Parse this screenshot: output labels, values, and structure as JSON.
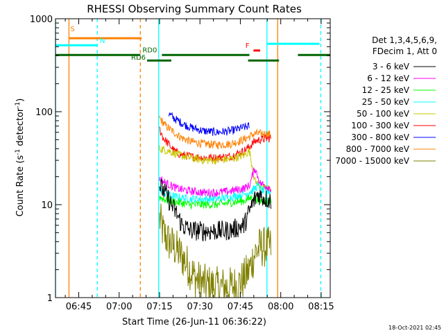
{
  "chart_data": {
    "type": "line",
    "title": "RHESSI Observing Summary Count Rates",
    "xlabel": "Start Time (26-Jun-11 06:36:22)",
    "ylabel_main": "Count Rate (s",
    "ylabel_sup": "-1",
    "ylabel_mid": " detector",
    "ylabel_close": ")",
    "footer_stamp": "18-Oct-2021 02:45",
    "x_unit": "minutes after 06:36:22",
    "xlim": [
      0,
      102
    ],
    "ylim": [
      1,
      1000
    ],
    "y_scale": "log",
    "x_ticks": [
      {
        "t": 8.63,
        "label": "06:45"
      },
      {
        "t": 23.63,
        "label": "07:00"
      },
      {
        "t": 38.63,
        "label": "07:15"
      },
      {
        "t": 53.63,
        "label": "07:30"
      },
      {
        "t": 68.63,
        "label": "07:45"
      },
      {
        "t": 83.63,
        "label": "08:00"
      },
      {
        "t": 98.63,
        "label": "08:15"
      }
    ],
    "y_ticks": [
      {
        "v": 1,
        "label": "1"
      },
      {
        "v": 10,
        "label": "10"
      },
      {
        "v": 100,
        "label": "100"
      },
      {
        "v": 1000,
        "label": "1000"
      }
    ],
    "legend_header": [
      "Det 1,3,4,5,6,9,",
      "FDecim 1, Att 0"
    ],
    "series": [
      {
        "name": "3 - 6 keV",
        "color": "#000000",
        "t": [
          38.6,
          41,
          43,
          45,
          47,
          50,
          55,
          60,
          65,
          70,
          73,
          75,
          77,
          80
        ],
        "v": [
          16,
          13,
          10,
          8,
          6,
          5.3,
          5.2,
          5.2,
          5.3,
          6,
          10,
          13,
          12,
          11
        ]
      },
      {
        "name": "6 - 12 keV",
        "color": "#ff00ff",
        "t": [
          38.6,
          41,
          43,
          45,
          47,
          50,
          55,
          60,
          65,
          70,
          72,
          74,
          76,
          78,
          80
        ],
        "v": [
          19,
          17,
          16,
          15,
          14.5,
          14,
          13.5,
          13.5,
          14,
          15,
          16,
          25,
          17,
          16,
          15
        ]
      },
      {
        "name": "12 - 25 keV",
        "color": "#00ff00",
        "t": [
          38.6,
          42,
          46,
          50,
          55,
          60,
          65,
          70,
          73,
          76,
          80
        ],
        "v": [
          12,
          11,
          10.5,
          10,
          10,
          10,
          10.5,
          11,
          12,
          11,
          11
        ]
      },
      {
        "name": "25 - 50 keV",
        "color": "#00ffff",
        "t": [
          38.6,
          41,
          45,
          50,
          55,
          60,
          65,
          70,
          73,
          75,
          77,
          80
        ],
        "v": [
          15,
          13,
          12,
          11.5,
          11.5,
          11.5,
          12,
          13,
          14,
          16,
          14,
          14
        ]
      },
      {
        "name": "50 - 100 keV",
        "color": "#c8c800",
        "t": [
          38.6,
          42,
          44,
          46,
          50,
          55,
          60,
          65,
          70,
          72,
          74,
          77,
          80
        ],
        "v": [
          40,
          38,
          36,
          34,
          32,
          30,
          30,
          31,
          34,
          38,
          18,
          15,
          15
        ]
      },
      {
        "name": "100 - 300 keV",
        "color": "#ff0000",
        "t": [
          38.6,
          40,
          42,
          44,
          46,
          50,
          55,
          60,
          65,
          70,
          72,
          74,
          76,
          80
        ],
        "v": [
          65,
          52,
          45,
          38,
          35,
          33,
          32,
          32,
          33,
          38,
          42,
          48,
          50,
          52
        ]
      },
      {
        "name": "300 - 800 keV",
        "color": "#0000ff",
        "t": [
          42,
          44,
          47,
          50,
          55,
          60,
          65,
          70,
          72
        ],
        "v": [
          95,
          85,
          75,
          68,
          62,
          60,
          62,
          68,
          70
        ]
      },
      {
        "name": "800 - 7000 keV",
        "color": "#ff8000",
        "t": [
          38.6,
          41,
          44,
          47,
          50,
          55,
          60,
          65,
          70,
          72,
          74,
          77,
          80
        ],
        "v": [
          85,
          70,
          60,
          52,
          48,
          45,
          44,
          45,
          50,
          54,
          58,
          58,
          57
        ]
      },
      {
        "name": "7000 - 15000 keV",
        "color": "#808000",
        "t": [
          38.6,
          40,
          42,
          44,
          46,
          48,
          50,
          52,
          55,
          60,
          65,
          68,
          70,
          72,
          74,
          76,
          78,
          80
        ],
        "v": [
          7,
          5,
          4,
          3.5,
          3,
          2.5,
          2,
          1.6,
          1.4,
          1.3,
          1.3,
          1.4,
          1.6,
          2,
          3,
          3.5,
          3.5,
          3.5
        ]
      }
    ],
    "flag_lines": [
      {
        "label": "S",
        "color": "#ff8000",
        "level": 0.93,
        "segments": [
          [
            5,
            32
          ]
        ],
        "label_t": 5.5,
        "label_level": 0.95,
        "label_anchor": "start"
      },
      {
        "label": "N",
        "color": "#00ffff",
        "level": 0.905,
        "segments": [
          [
            0,
            15.5
          ]
        ],
        "label_t": 16.5,
        "label_level": 0.908,
        "label_anchor": "start"
      },
      {
        "label": "RD0",
        "color": "#006400",
        "level": 0.87,
        "segments": [
          [
            0,
            31.5
          ],
          [
            39.5,
            72
          ],
          [
            90,
            102
          ]
        ],
        "label_t": 35,
        "label_level": 0.875,
        "label_anchor": "middle"
      },
      {
        "label": "RD6",
        "color": "#006400",
        "level": 0.85,
        "segments": [
          [
            34,
            43
          ],
          [
            71.5,
            83
          ]
        ],
        "label_t": 33.5,
        "label_level": 0.848,
        "label_anchor": "end"
      },
      {
        "label": "F",
        "color": "#ff0000",
        "level": 0.886,
        "segments": [
          [
            73.5,
            76
          ]
        ],
        "label_t": 72,
        "label_level": 0.89,
        "label_anchor": "end"
      },
      {
        "label": "",
        "color": "#00ffff",
        "level": 0.91,
        "segments": [
          [
            78.5,
            98
          ]
        ],
        "label_t": 0,
        "label_level": 0,
        "label_anchor": "start"
      }
    ],
    "event_lines": [
      {
        "color": "#00ffff",
        "style": "solid",
        "t": [
          0,
          38.3,
          78.5
        ]
      },
      {
        "color": "#00ffff",
        "style": "dashed",
        "t": [
          15.5,
          98.5
        ]
      },
      {
        "color": "#ff8000",
        "style": "solid",
        "t": [
          5,
          82.5
        ]
      },
      {
        "color": "#ff8000",
        "style": "dashed",
        "t": [
          31.5
        ]
      }
    ]
  }
}
